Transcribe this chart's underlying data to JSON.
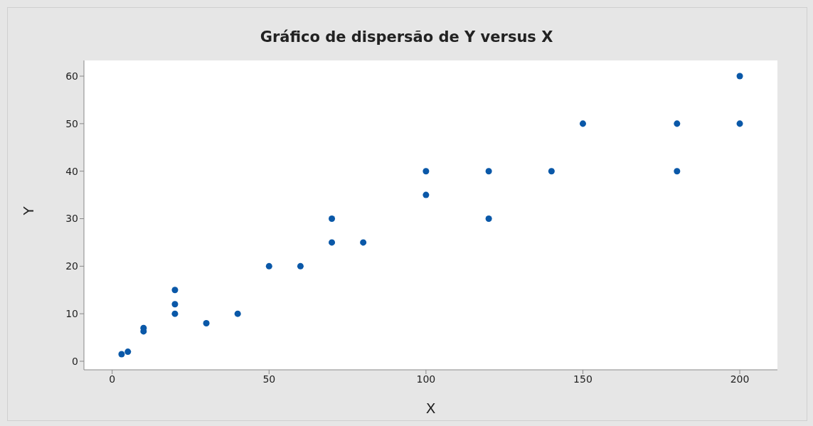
{
  "chart_data": {
    "type": "scatter",
    "title": "Gráfico de dispersão de Y versus X",
    "xlabel": "X",
    "ylabel": "Y",
    "x": [
      3,
      5,
      10,
      10,
      20,
      20,
      20,
      30,
      40,
      50,
      60,
      70,
      70,
      80,
      100,
      100,
      120,
      120,
      140,
      150,
      180,
      180,
      200,
      200
    ],
    "values": [
      1.5,
      2,
      6.3,
      7,
      10,
      12,
      15,
      8,
      10,
      20,
      20,
      25,
      30,
      25,
      35,
      40,
      30,
      40,
      40,
      50,
      40,
      50,
      50,
      60
    ],
    "color": "#0a58a8",
    "marker": "circle",
    "xlim": [
      -9,
      212
    ],
    "xticks": [
      0,
      50,
      100,
      150,
      200
    ],
    "ylim": [
      -1.8,
      63.3
    ],
    "yticks": [
      0,
      10,
      20,
      30,
      40,
      50,
      60
    ]
  }
}
